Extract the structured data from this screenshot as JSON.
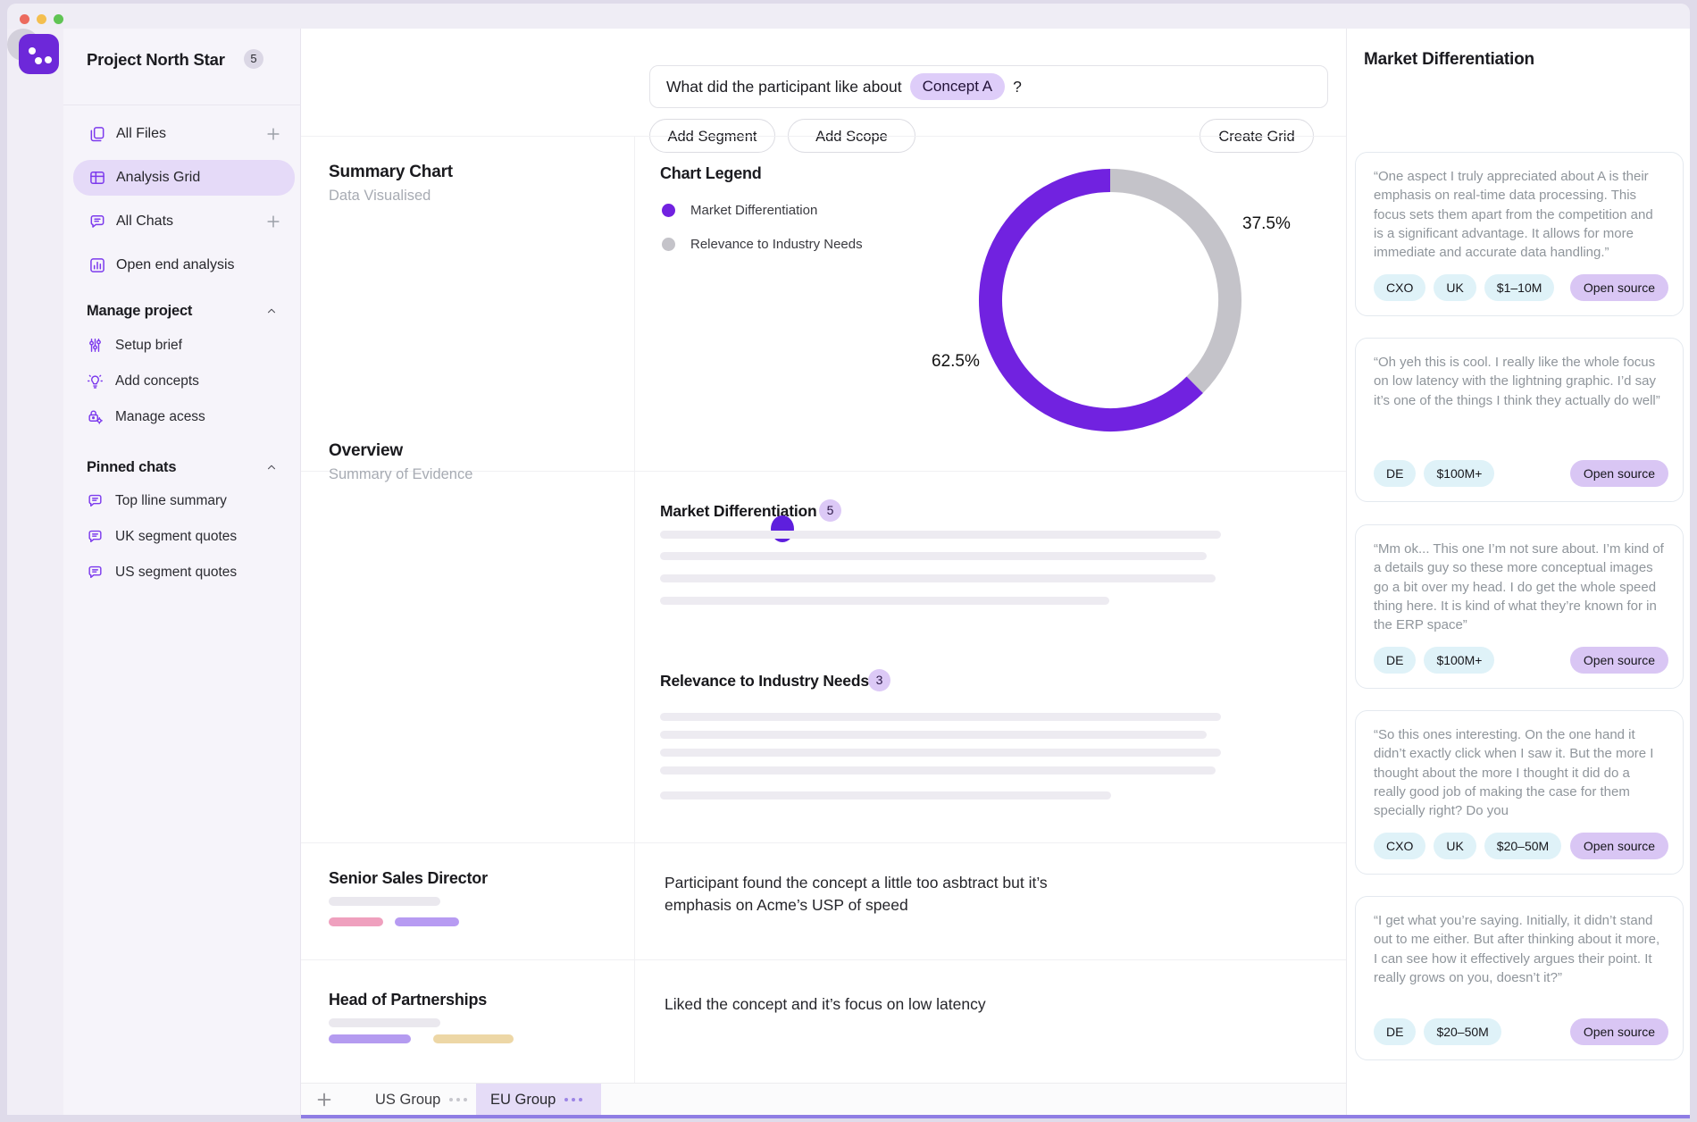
{
  "window": {
    "traffic_lights": [
      "close",
      "minimize",
      "zoom"
    ]
  },
  "sidebar": {
    "project_title": "Project North Star",
    "project_badge": "5",
    "nav_items": [
      {
        "label": "All Files",
        "icon": "files-icon",
        "has_add": true,
        "active": false
      },
      {
        "label": "Analysis Grid",
        "icon": "grid-icon",
        "has_add": false,
        "active": true
      },
      {
        "label": "All Chats",
        "icon": "chat-icon",
        "has_add": true,
        "active": false
      },
      {
        "label": "Open end analysis",
        "icon": "bar-chart-icon",
        "has_add": false,
        "active": false
      }
    ],
    "sections": [
      {
        "title": "Manage project",
        "items": [
          {
            "label": "Setup brief",
            "icon": "sliders-icon"
          },
          {
            "label": "Add concepts",
            "icon": "lightbulb-icon"
          },
          {
            "label": "Manage acess",
            "icon": "lock-gear-icon"
          }
        ]
      },
      {
        "title": "Pinned chats",
        "items": [
          {
            "label": "Top lline summary",
            "icon": "chat-icon"
          },
          {
            "label": "UK segment quotes",
            "icon": "chat-icon"
          },
          {
            "label": "US segment quotes",
            "icon": "chat-icon"
          }
        ]
      }
    ]
  },
  "query_bar": {
    "prefix": "What did the participant like about",
    "concept_chip": "Concept A",
    "suffix": "?",
    "add_segment": "Add Segment",
    "add_scope": "Add Scope",
    "create_grid": "Create Grid"
  },
  "grid": {
    "row1": {
      "title": "Summary Chart",
      "subtitle": "Data Visualised"
    },
    "row2": {
      "title": "Overview",
      "subtitle": "Summary of Evidence"
    },
    "row3": {
      "title": "Senior Sales Director",
      "text": "Participant found the concept a little too asbtract but it’s emphasis on Acme’s USP of speed"
    },
    "row4": {
      "title": "Head of Partnerships",
      "text": "Liked the concept and it’s focus on low latency"
    }
  },
  "overview_sections": [
    {
      "heading": "Market Differentiation",
      "count": "5"
    },
    {
      "heading": "Relevance to Industry Needs",
      "count": "3"
    }
  ],
  "chart_data": {
    "type": "pie",
    "variant": "donut",
    "legend_title": "Chart Legend",
    "legend_position": "left",
    "slices": [
      {
        "label": "Market Differentiation",
        "value": 62.5,
        "value_label": "62.5%",
        "color": "#7122E0"
      },
      {
        "label": "Relevance to Industry Needs",
        "value": 37.5,
        "value_label": "37.5%",
        "color": "#C4C3C9"
      }
    ],
    "draw_order_from_top_clockwise": [
      "Relevance to Industry Needs",
      "Market Differentiation"
    ]
  },
  "right_panel": {
    "title": "Market Differentiation",
    "quotes": [
      {
        "text": "“One aspect I truly appreciated about A is their emphasis on real-time data processing. This focus sets them apart from the competition and is a significant advantage. It allows for more immediate and accurate data handling.”",
        "tags": [
          "CXO",
          "UK",
          "$1–10M"
        ],
        "source": "Open source"
      },
      {
        "text": "“Oh yeh this is cool. I really like the whole focus on low latency with the lightning graphic. I’d say it’s one of the things I think they actually do well”",
        "tags": [
          "DE",
          "$100M+"
        ],
        "source": "Open source"
      },
      {
        "text": "“Mm ok... This one I’m not sure about. I’m kind of a details guy so these more conceptual images go a bit over my head. I do get the whole speed thing here. It is kind of what they’re known for in the ERP space”",
        "tags": [
          "DE",
          "$100M+"
        ],
        "source": "Open source"
      },
      {
        "text": "“So this ones interesting. On the one hand it didn’t exactly click when I saw it.  But the more I thought about the more I thought it did do a really good job of making the case for them specially right? Do you",
        "tags": [
          "CXO",
          "UK",
          "$20–50M"
        ],
        "source": "Open source"
      },
      {
        "text": "“I get what you’re saying. Initially, it didn’t stand out to me either. But after thinking about it more, I can see how it effectively argues their point. It really grows on you, doesn’t it?”",
        "tags": [
          "DE",
          "$20–50M"
        ],
        "source": "Open source"
      }
    ]
  },
  "tab_bar": {
    "tabs": [
      {
        "label": "US Group",
        "active": false
      },
      {
        "label": "EU Group",
        "active": true
      }
    ]
  },
  "colors": {
    "primary_purple": "#7122E0",
    "chart_gray": "#C4C3C9",
    "accent_light_purple": "#E5DAF8"
  }
}
